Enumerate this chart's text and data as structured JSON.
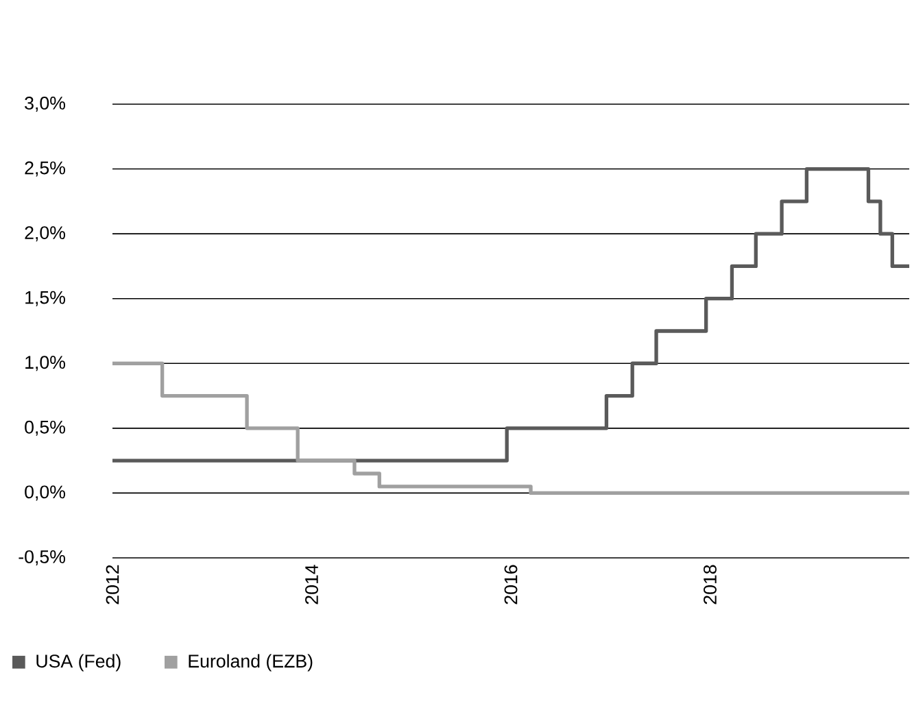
{
  "chart_data": {
    "type": "step",
    "xlim": [
      2012,
      2020
    ],
    "xticks": [
      2012,
      2014,
      2016,
      2018
    ],
    "ylim": [
      -0.5,
      3.0
    ],
    "yticks": [
      {
        "value": -0.5,
        "label": "-0,5%"
      },
      {
        "value": 0,
        "label": "0,0%"
      },
      {
        "value": 0.5,
        "label": "0,5%"
      },
      {
        "value": 1,
        "label": "1,0%"
      },
      {
        "value": 1.5,
        "label": "1,5%"
      },
      {
        "value": 2,
        "label": "2,0%"
      },
      {
        "value": 2.5,
        "label": "2,5%"
      },
      {
        "value": 3,
        "label": "3,0%"
      }
    ],
    "grid": "y",
    "legend": "bottom left",
    "line_style": "solid",
    "marker": "none",
    "series": [
      {
        "name": "USA (Fed)",
        "color": "#5a5a5a",
        "x": [
          2012,
          2015.96,
          2016.96,
          2017.22,
          2017.46,
          2017.96,
          2018.22,
          2018.46,
          2018.72,
          2018.97,
          2019.59,
          2019.71,
          2019.83,
          2020
        ],
        "values": [
          0.25,
          0.5,
          0.75,
          1.0,
          1.25,
          1.5,
          1.75,
          2.0,
          2.25,
          2.5,
          2.25,
          2.0,
          1.75,
          1.75
        ]
      },
      {
        "name": "Euroland (EZB)",
        "color": "#a0a0a0",
        "x": [
          2012,
          2012.5,
          2013.35,
          2013.86,
          2014.43,
          2014.68,
          2016.2,
          2020
        ],
        "values": [
          1.0,
          0.75,
          0.5,
          0.25,
          0.15,
          0.05,
          0.0,
          0.0
        ]
      }
    ]
  }
}
